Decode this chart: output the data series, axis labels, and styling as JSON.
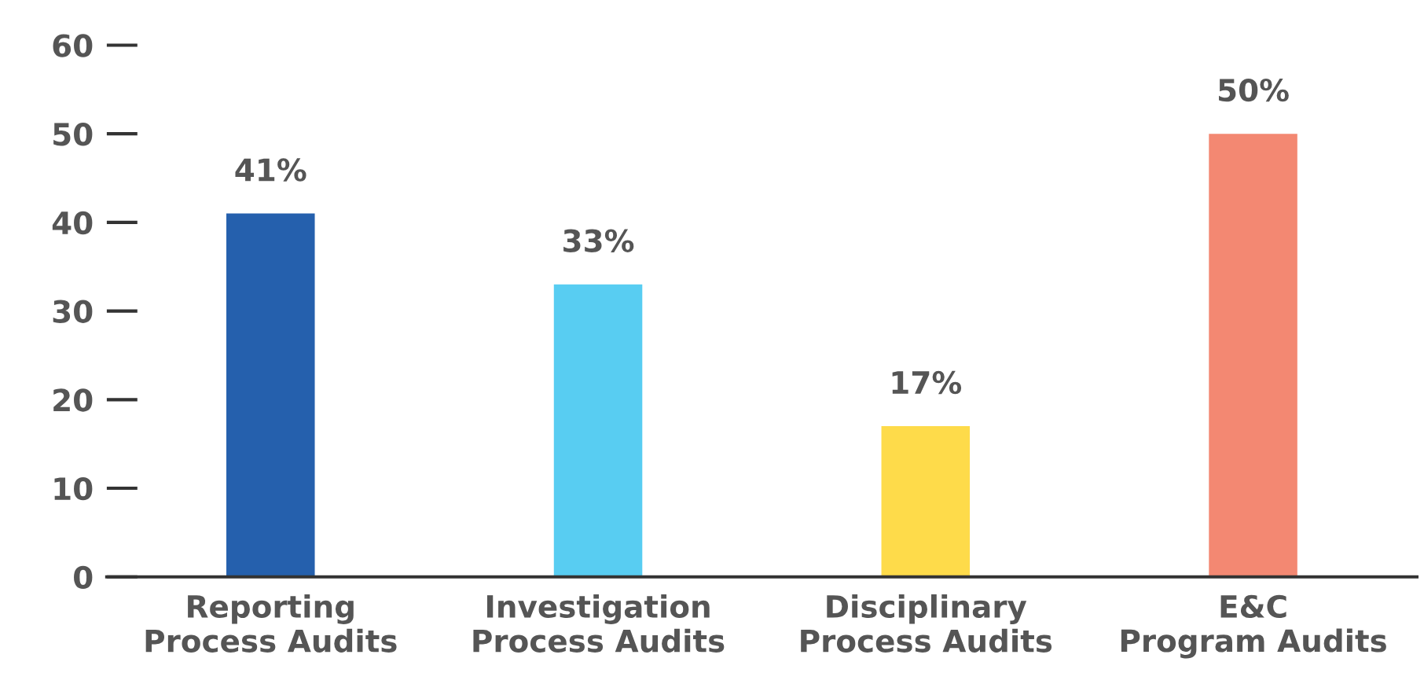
{
  "chart_data": {
    "type": "bar",
    "categories": [
      "Reporting\nProcess Audits",
      "Investigation\nProcess Audits",
      "Disciplinary\nProcess Audits",
      "E&C\nProgram Audits"
    ],
    "values": [
      41,
      33,
      17,
      50
    ],
    "colors": [
      "#2560ad",
      "#58cdf2",
      "#fedb4a",
      "#f38872"
    ],
    "value_labels": [
      "41%",
      "33%",
      "17%",
      "50%"
    ],
    "ylim": [
      0,
      60
    ],
    "yticks": [
      0,
      10,
      20,
      30,
      40,
      50,
      60
    ],
    "grid": false,
    "legend": false
  }
}
